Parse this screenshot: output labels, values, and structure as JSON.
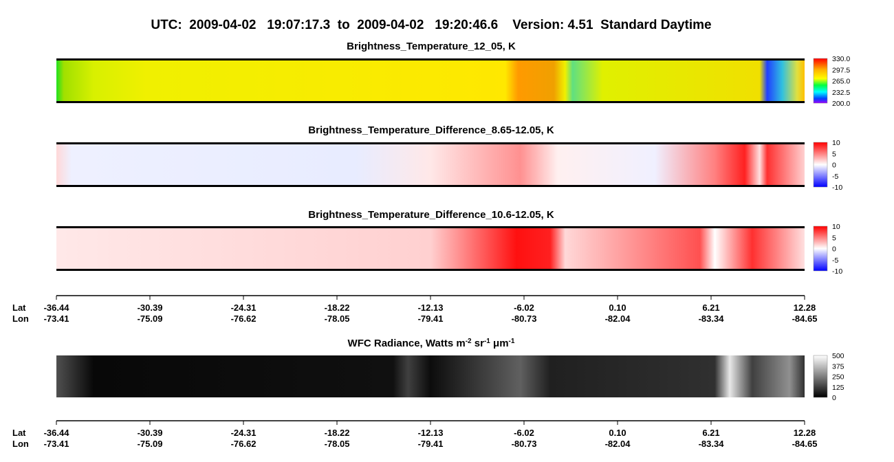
{
  "title": "UTC:  2009-04-02   19:07:17.3  to  2009-04-02   19:20:46.6    Version: 4.51  Standard Daytime",
  "panels": [
    {
      "title": "Brightness_Temperature_12_05, K",
      "colorbar": [
        "330.0",
        "297.5",
        "265.0",
        "232.5",
        "200.0"
      ]
    },
    {
      "title": "Brightness_Temperature_Difference_8.65-12.05, K",
      "colorbar": [
        "10",
        "5",
        "0",
        "-5",
        "-10"
      ]
    },
    {
      "title": "Brightness_Temperature_Difference_10.6-12.05, K",
      "colorbar": [
        "10",
        "5",
        "0",
        "-5",
        "-10"
      ]
    },
    {
      "title": [
        "WFC Radiance, Watts m",
        "-2",
        " sr",
        "-1",
        " μm",
        "-1"
      ],
      "colorbar": [
        "500",
        "375",
        "250",
        "125",
        "0"
      ]
    }
  ],
  "axes": [
    {
      "lat_label": "Lat",
      "lon_label": "Lon",
      "lat": [
        "-36.44",
        "-30.39",
        "-24.31",
        "-18.22",
        "-12.13",
        "-6.02",
        "0.10",
        "6.21",
        "12.28"
      ],
      "lon": [
        "-73.41",
        "-75.09",
        "-76.62",
        "-78.05",
        "-79.41",
        "-80.73",
        "-82.04",
        "-83.34",
        "-84.65"
      ]
    },
    {
      "lat_label": "Lat",
      "lon_label": "Lon",
      "lat": [
        "-36.44",
        "-30.39",
        "-24.31",
        "-18.22",
        "-12.13",
        "-6.02",
        "0.10",
        "6.21",
        "12.28"
      ],
      "lon": [
        "-73.41",
        "-75.09",
        "-76.62",
        "-78.05",
        "-79.41",
        "-80.73",
        "-82.04",
        "-83.34",
        "-84.65"
      ]
    }
  ]
}
